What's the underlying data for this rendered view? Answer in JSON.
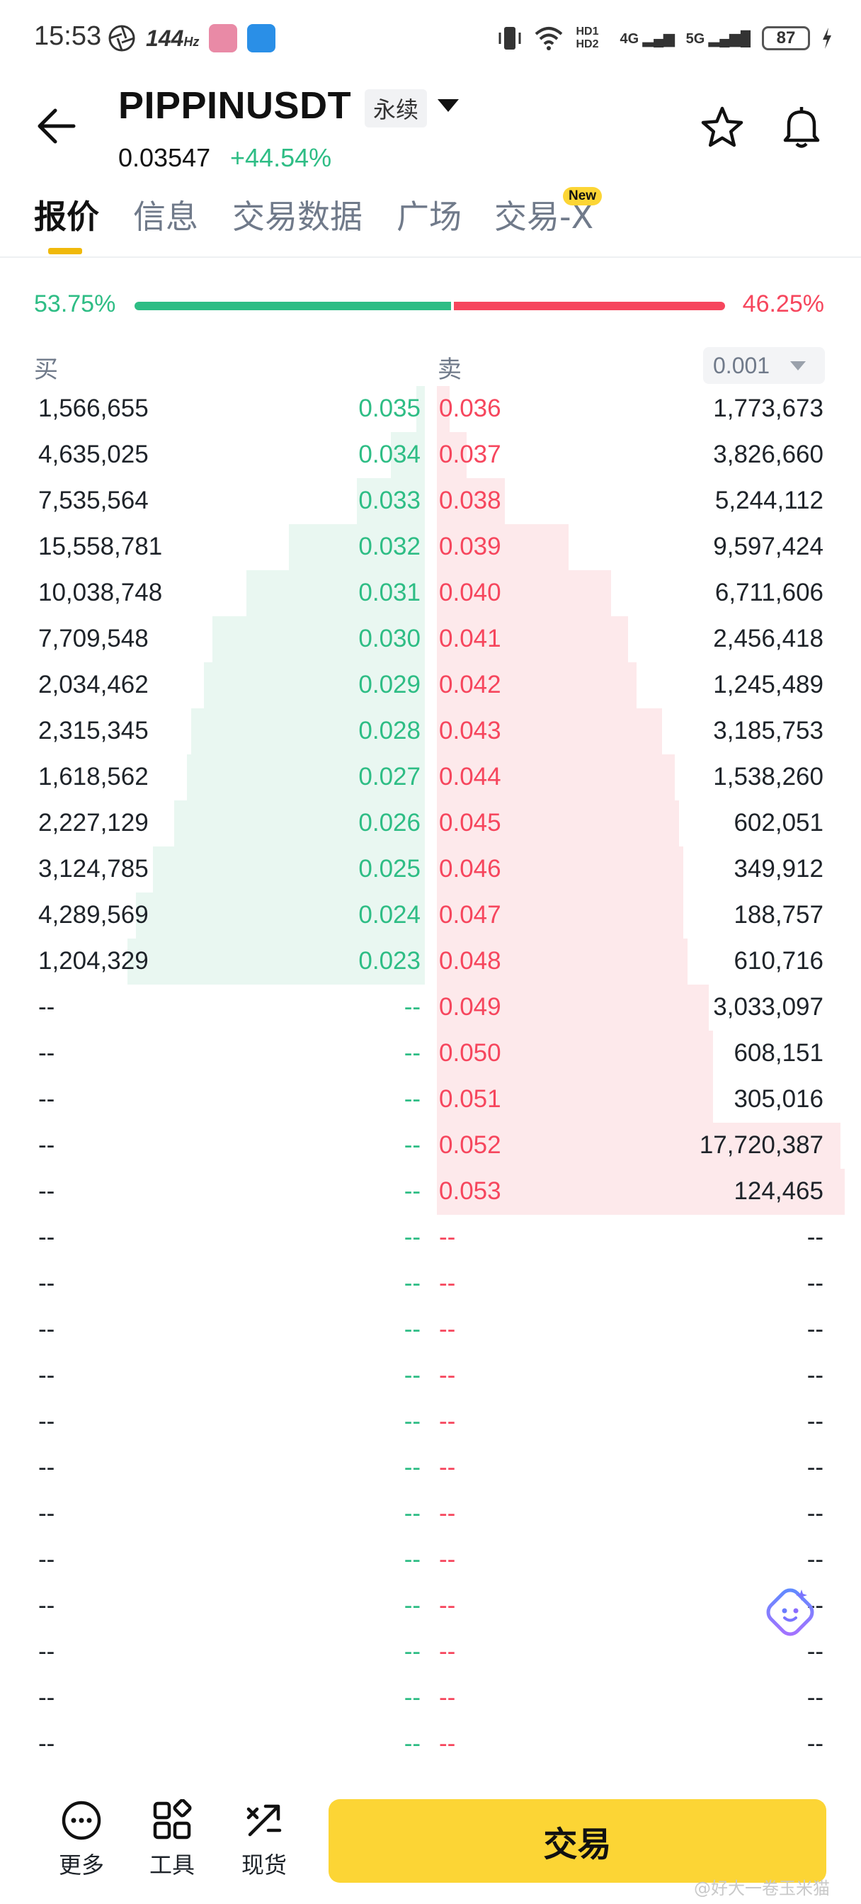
{
  "status_bar": {
    "time": "15:53",
    "refresh_rate": "144",
    "refresh_unit": "Hz",
    "network1": "HD1 HD2",
    "net_4g": "4G",
    "net_5g": "5G",
    "battery": "87"
  },
  "header": {
    "pair": "PIPPINUSDT",
    "contract_type": "永续",
    "last_price": "0.03547",
    "change_pct": "+44.54%"
  },
  "tabs": [
    {
      "label": "报价",
      "active": true
    },
    {
      "label": "信息",
      "active": false
    },
    {
      "label": "交易数据",
      "active": false
    },
    {
      "label": "广场",
      "active": false
    },
    {
      "label": "交易-X",
      "active": false,
      "badge": "New"
    }
  ],
  "ratio": {
    "buy_pct": "53.75%",
    "sell_pct": "46.25%",
    "buy_fraction": 0.5375
  },
  "book_header": {
    "buy_label": "买",
    "sell_label": "卖",
    "precision": "0.001"
  },
  "colors": {
    "buy": "#2ebd85",
    "sell": "#f6465d",
    "accent": "#fcd535"
  },
  "orderbook": [
    {
      "bq": "1,566,655",
      "bp": "0.035",
      "sp": "0.036",
      "sq": "1,773,673",
      "bd": 0.02,
      "sd": 0.03
    },
    {
      "bq": "4,635,025",
      "bp": "0.034",
      "sp": "0.037",
      "sq": "3,826,660",
      "bd": 0.08,
      "sd": 0.07
    },
    {
      "bq": "7,535,564",
      "bp": "0.033",
      "sp": "0.038",
      "sq": "5,244,112",
      "bd": 0.16,
      "sd": 0.16
    },
    {
      "bq": "15,558,781",
      "bp": "0.032",
      "sp": "0.039",
      "sq": "9,597,424",
      "bd": 0.32,
      "sd": 0.31
    },
    {
      "bq": "10,038,748",
      "bp": "0.031",
      "sp": "0.040",
      "sq": "6,711,606",
      "bd": 0.42,
      "sd": 0.41
    },
    {
      "bq": "7,709,548",
      "bp": "0.030",
      "sp": "0.041",
      "sq": "2,456,418",
      "bd": 0.5,
      "sd": 0.45
    },
    {
      "bq": "2,034,462",
      "bp": "0.029",
      "sp": "0.042",
      "sq": "1,245,489",
      "bd": 0.52,
      "sd": 0.47
    },
    {
      "bq": "2,315,345",
      "bp": "0.028",
      "sp": "0.043",
      "sq": "3,185,753",
      "bd": 0.55,
      "sd": 0.53
    },
    {
      "bq": "1,618,562",
      "bp": "0.027",
      "sp": "0.044",
      "sq": "1,538,260",
      "bd": 0.56,
      "sd": 0.56
    },
    {
      "bq": "2,227,129",
      "bp": "0.026",
      "sp": "0.045",
      "sq": "602,051",
      "bd": 0.59,
      "sd": 0.57
    },
    {
      "bq": "3,124,785",
      "bp": "0.025",
      "sp": "0.046",
      "sq": "349,912",
      "bd": 0.64,
      "sd": 0.58
    },
    {
      "bq": "4,289,569",
      "bp": "0.024",
      "sp": "0.047",
      "sq": "188,757",
      "bd": 0.68,
      "sd": 0.58
    },
    {
      "bq": "1,204,329",
      "bp": "0.023",
      "sp": "0.048",
      "sq": "610,716",
      "bd": 0.7,
      "sd": 0.59
    },
    {
      "bq": "--",
      "bp": "--",
      "sp": "0.049",
      "sq": "3,033,097",
      "bd": 0,
      "sd": 0.64
    },
    {
      "bq": "--",
      "bp": "--",
      "sp": "0.050",
      "sq": "608,151",
      "bd": 0,
      "sd": 0.65
    },
    {
      "bq": "--",
      "bp": "--",
      "sp": "0.051",
      "sq": "305,016",
      "bd": 0,
      "sd": 0.65
    },
    {
      "bq": "--",
      "bp": "--",
      "sp": "0.052",
      "sq": "17,720,387",
      "bd": 0,
      "sd": 0.95
    },
    {
      "bq": "--",
      "bp": "--",
      "sp": "0.053",
      "sq": "124,465",
      "bd": 0,
      "sd": 0.96
    },
    {
      "bq": "--",
      "bp": "--",
      "sp": "--",
      "sq": "--",
      "bd": 0,
      "sd": 0
    },
    {
      "bq": "--",
      "bp": "--",
      "sp": "--",
      "sq": "--",
      "bd": 0,
      "sd": 0
    },
    {
      "bq": "--",
      "bp": "--",
      "sp": "--",
      "sq": "--",
      "bd": 0,
      "sd": 0
    },
    {
      "bq": "--",
      "bp": "--",
      "sp": "--",
      "sq": "--",
      "bd": 0,
      "sd": 0
    },
    {
      "bq": "--",
      "bp": "--",
      "sp": "--",
      "sq": "--",
      "bd": 0,
      "sd": 0
    },
    {
      "bq": "--",
      "bp": "--",
      "sp": "--",
      "sq": "--",
      "bd": 0,
      "sd": 0
    },
    {
      "bq": "--",
      "bp": "--",
      "sp": "--",
      "sq": "--",
      "bd": 0,
      "sd": 0
    },
    {
      "bq": "--",
      "bp": "--",
      "sp": "--",
      "sq": "--",
      "bd": 0,
      "sd": 0
    },
    {
      "bq": "--",
      "bp": "--",
      "sp": "--",
      "sq": "--",
      "bd": 0,
      "sd": 0
    },
    {
      "bq": "--",
      "bp": "--",
      "sp": "--",
      "sq": "--",
      "bd": 0,
      "sd": 0
    },
    {
      "bq": "--",
      "bp": "--",
      "sp": "--",
      "sq": "--",
      "bd": 0,
      "sd": 0
    },
    {
      "bq": "--",
      "bp": "--",
      "sp": "--",
      "sq": "--",
      "bd": 0,
      "sd": 0
    }
  ],
  "bottom_nav": [
    {
      "label": "更多",
      "icon": "more-icon"
    },
    {
      "label": "工具",
      "icon": "tools-icon"
    },
    {
      "label": "现货",
      "icon": "spot-icon"
    }
  ],
  "trade_button": "交易",
  "watermark": "@好大一卷玉米猫"
}
